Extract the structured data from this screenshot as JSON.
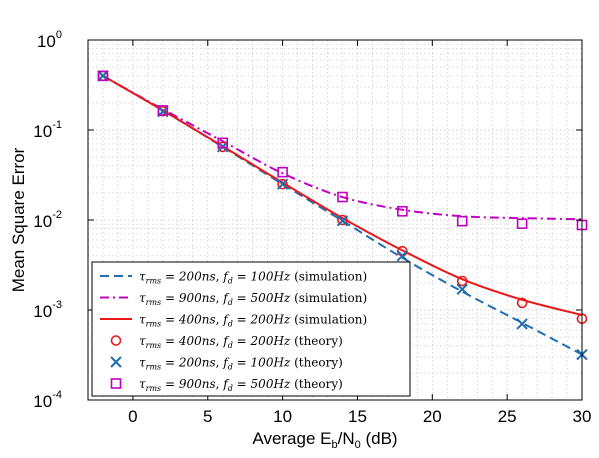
{
  "chart_data": {
    "type": "line",
    "xlabel": "Average E_b/N_0 (dB)",
    "ylabel": "Mean Square Error",
    "xlim": [
      -3,
      30
    ],
    "ylim": [
      0.0001,
      1
    ],
    "yscale": "log",
    "grid": true,
    "legend_position": "bottom-left",
    "x_ticks": [
      "0",
      "5",
      "10",
      "15",
      "20",
      "25",
      "30"
    ],
    "y_ticks": [
      "10^-4",
      "10^-3",
      "10^-2",
      "10^-1",
      "10^0"
    ],
    "x": [
      -2,
      2,
      6,
      10,
      14,
      18,
      22,
      26,
      30
    ],
    "series": [
      {
        "name": "τ_rms = 200ns, f_d = 100Hz (simulation)",
        "style": "dashed line",
        "color": "#1f6fb0",
        "values": [
          0.4,
          0.165,
          0.065,
          0.025,
          0.0098,
          0.0038,
          0.0016,
          0.00072,
          0.00032
        ]
      },
      {
        "name": "τ_rms = 900ns, f_d = 500Hz (simulation)",
        "style": "dash-dot line",
        "color": "#c000c0",
        "values": [
          0.4,
          0.17,
          0.075,
          0.033,
          0.018,
          0.013,
          0.011,
          0.0105,
          0.0102
        ]
      },
      {
        "name": "τ_rms = 400ns, f_d = 200Hz (simulation)",
        "style": "solid line",
        "color": "#e8191b",
        "values": [
          0.4,
          0.165,
          0.066,
          0.026,
          0.0105,
          0.0046,
          0.0022,
          0.0013,
          0.00088
        ]
      },
      {
        "name": "τ_rms = 400ns, f_d = 200Hz (theory)",
        "style": "circle markers",
        "color": "#e8191b",
        "values": [
          0.4,
          0.162,
          0.065,
          0.025,
          0.01,
          0.0045,
          0.0021,
          0.0012,
          0.0008
        ]
      },
      {
        "name": "τ_rms = 200ns, f_d = 100Hz (theory)",
        "style": "x markers",
        "color": "#1f6fb0",
        "values": [
          0.4,
          0.16,
          0.065,
          0.025,
          0.0098,
          0.004,
          0.0017,
          0.0007,
          0.00032
        ]
      },
      {
        "name": "τ_rms = 900ns, f_d = 500Hz (theory)",
        "style": "square markers",
        "color": "#c000c0",
        "values": [
          0.4,
          0.165,
          0.072,
          0.034,
          0.018,
          0.0125,
          0.0097,
          0.0091,
          0.0088
        ]
      }
    ],
    "legend": [
      {
        "tau": "200ns",
        "fd": "100Hz",
        "kind": "(simulation)"
      },
      {
        "tau": "900ns",
        "fd": "500Hz",
        "kind": "(simulation)"
      },
      {
        "tau": "400ns",
        "fd": "200Hz",
        "kind": "(simulation)"
      },
      {
        "tau": "400ns",
        "fd": "200Hz",
        "kind": "(theory)"
      },
      {
        "tau": "200ns",
        "fd": "100Hz",
        "kind": "(theory)"
      },
      {
        "tau": "900ns",
        "fd": "500Hz",
        "kind": "(theory)"
      }
    ]
  }
}
